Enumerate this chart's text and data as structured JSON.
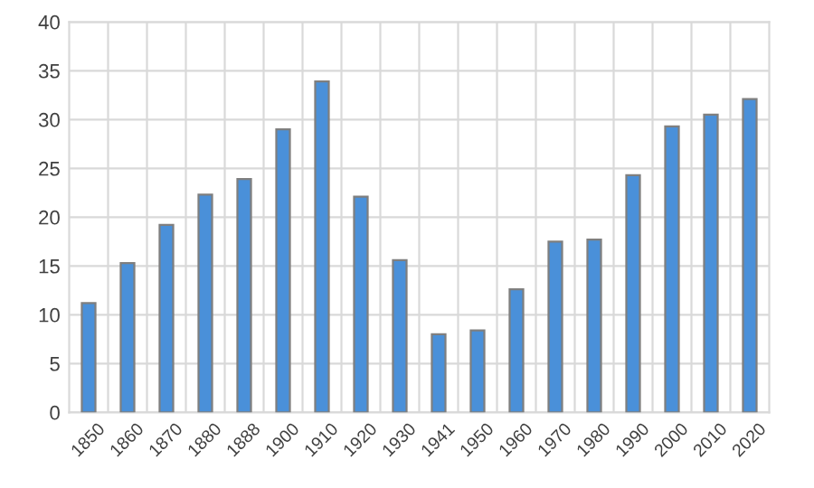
{
  "chart_data": {
    "type": "bar",
    "categories": [
      "1850",
      "1860",
      "1870",
      "1880",
      "1888",
      "1900",
      "1910",
      "1920",
      "1930",
      "1941",
      "1950",
      "1960",
      "1970",
      "1980",
      "1990",
      "2000",
      "2010",
      "2020"
    ],
    "values": [
      11.2,
      15.3,
      19.2,
      22.3,
      23.9,
      29.0,
      33.9,
      22.1,
      15.6,
      8.0,
      8.4,
      12.6,
      17.5,
      17.7,
      24.3,
      29.3,
      30.5,
      32.1
    ],
    "color": "#4a90d9",
    "ylim": [
      0,
      40
    ],
    "yticks": [
      0,
      5,
      10,
      15,
      20,
      25,
      30,
      35,
      40
    ],
    "grid": true
  }
}
